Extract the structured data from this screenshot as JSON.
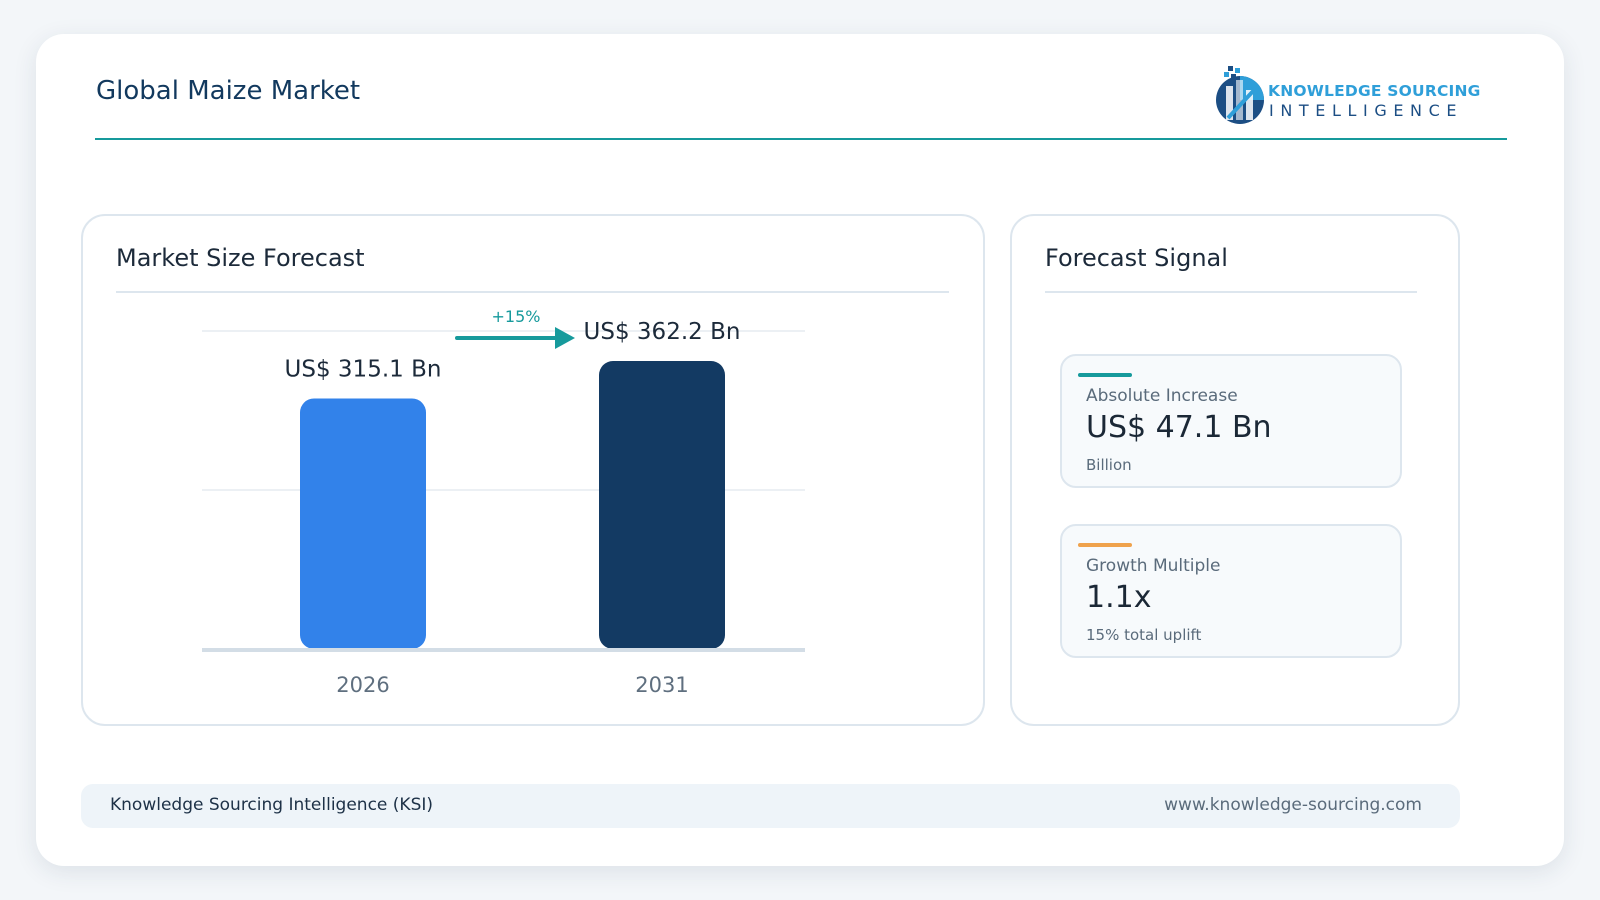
{
  "header": {
    "title": "Global Maize Market"
  },
  "logo": {
    "line1": "KNOWLEDGE SOURCING",
    "line2": "INTELLIGENCE"
  },
  "market_panel": {
    "title": "Market Size Forecast"
  },
  "signal_panel": {
    "title": "Forecast Signal",
    "cards": [
      {
        "label": "Absolute Increase",
        "value": "US$ 47.1 Bn",
        "sub": "Billion",
        "accent": "#169a9c"
      },
      {
        "label": "Growth Multiple",
        "value": "1.1x",
        "sub": "15% total uplift",
        "accent": "#efa24c"
      }
    ]
  },
  "footer": {
    "left": "Knowledge Sourcing Intelligence (KSI)",
    "right": "www.knowledge-sourcing.com"
  },
  "chart_data": {
    "type": "bar",
    "categories": [
      "2026",
      "2031"
    ],
    "values": [
      315.1,
      362.2
    ],
    "value_labels": [
      "US$ 315.1 Bn",
      "US$ 362.2 Bn"
    ],
    "growth_label": "+15%",
    "title": "Market Size Forecast",
    "xlabel": "",
    "ylabel": "",
    "ylim": [
      0,
      400
    ],
    "grid": true,
    "colors": [
      "#3282ea",
      "#133a63"
    ],
    "accent": "#169a9c"
  }
}
